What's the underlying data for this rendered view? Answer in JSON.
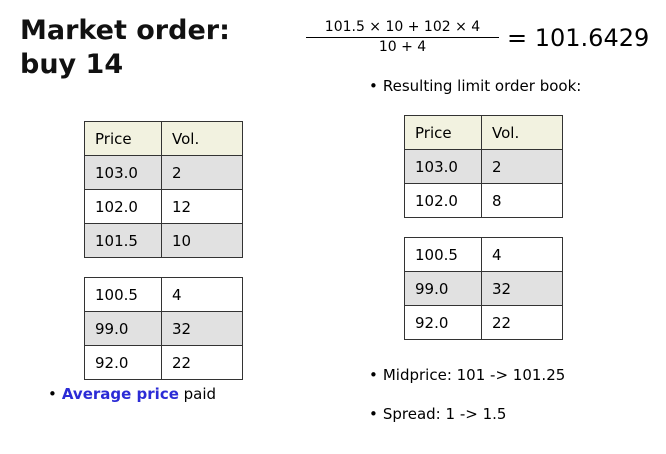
{
  "title": {
    "line1": "Market order:",
    "line2": "buy 14"
  },
  "formula": {
    "numerator": "101.5 × 10 + 102 × 4",
    "denominator": "10 + 4",
    "result": "= 101.6429"
  },
  "left_book": {
    "headers": [
      "Price",
      "Vol."
    ],
    "asks": [
      [
        "103.0",
        "2"
      ],
      [
        "102.0",
        "12"
      ],
      [
        "101.5",
        "10"
      ]
    ],
    "bids": [
      [
        "100.5",
        "4"
      ],
      [
        "99.0",
        "32"
      ],
      [
        "92.0",
        "22"
      ]
    ]
  },
  "right_book": {
    "caption": "Resulting limit order book:",
    "headers": [
      "Price",
      "Vol."
    ],
    "asks": [
      [
        "103.0",
        "2"
      ],
      [
        "102.0",
        "8"
      ]
    ],
    "bids": [
      [
        "100.5",
        "4"
      ],
      [
        "99.0",
        "32"
      ],
      [
        "92.0",
        "22"
      ]
    ]
  },
  "avg_price": {
    "link": "Average price",
    "rest": " paid"
  },
  "midprice": "Midprice: 101 -> 101.25",
  "spread": "Spread: 1 -> 1.5",
  "bullet_glyph": "•",
  "colors": {
    "link": "#2b2bd6",
    "header_bg": "#f2f2e0",
    "shaded_row": "#e1e1e1"
  }
}
